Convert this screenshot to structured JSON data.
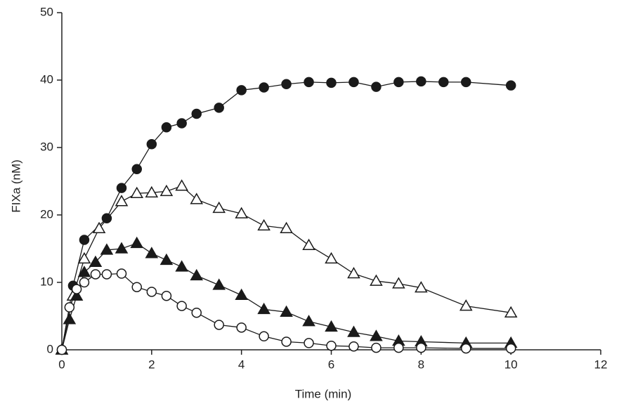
{
  "chart_data": {
    "type": "scatter",
    "x_label": "Time (min)",
    "y_label": "FIXa (nM)",
    "xlim": [
      0,
      12
    ],
    "xticks": [
      0,
      2,
      4,
      6,
      8,
      10,
      12
    ],
    "ylim": [
      0,
      50
    ],
    "yticks": [
      0,
      10,
      20,
      30,
      40,
      50
    ],
    "connect": true,
    "series": [
      {
        "marker": "circle",
        "filled": true,
        "color": "#1a1a1a",
        "x": [
          0,
          0.25,
          0.5,
          1,
          1.33,
          1.67,
          2,
          2.33,
          2.67,
          3,
          3.5,
          4,
          4.5,
          5,
          5.5,
          6,
          6.5,
          7,
          7.5,
          8,
          8.5,
          9,
          10
        ],
        "values": [
          0,
          9.5,
          16.3,
          19.5,
          24,
          26.8,
          30.5,
          33,
          33.6,
          35,
          35.9,
          38.5,
          38.9,
          39.4,
          39.7,
          39.6,
          39.7,
          39,
          39.7,
          39.8,
          39.7,
          39.7,
          39.2
        ]
      },
      {
        "marker": "triangle",
        "filled": false,
        "color": "#1a1a1a",
        "x": [
          0,
          0.25,
          0.5,
          0.83,
          1.33,
          1.67,
          2,
          2.33,
          2.67,
          3,
          3.5,
          4,
          4.5,
          5,
          5.5,
          6,
          6.5,
          7,
          7.5,
          8,
          9,
          10
        ],
        "values": [
          0,
          8,
          13.5,
          18,
          22,
          23.2,
          23.3,
          23.5,
          24.3,
          22.3,
          21,
          20.2,
          18.4,
          18,
          15.5,
          13.5,
          11.3,
          10.2,
          9.8,
          9.2,
          6.5,
          5.5
        ]
      },
      {
        "marker": "triangle",
        "filled": true,
        "color": "#1a1a1a",
        "x": [
          0,
          0.17,
          0.33,
          0.5,
          0.75,
          1,
          1.33,
          1.67,
          2,
          2.33,
          2.67,
          3,
          3.5,
          4,
          4.5,
          5,
          5.5,
          6,
          6.5,
          7,
          7.5,
          8,
          9,
          10
        ],
        "values": [
          0,
          4.5,
          8,
          11.5,
          13,
          14.8,
          15,
          15.8,
          14.3,
          13.3,
          12.3,
          11,
          9.6,
          8.1,
          6,
          5.6,
          4.2,
          3.4,
          2.6,
          2,
          1.3,
          1.2,
          1,
          1
        ]
      },
      {
        "marker": "circle",
        "filled": false,
        "color": "#1a1a1a",
        "x": [
          0,
          0.17,
          0.33,
          0.5,
          0.75,
          1,
          1.33,
          1.67,
          2,
          2.33,
          2.67,
          3,
          3.5,
          4,
          4.5,
          5,
          5.5,
          6,
          6.5,
          7,
          7.5,
          8,
          9,
          10
        ],
        "values": [
          0,
          6.3,
          9,
          10,
          11.2,
          11.2,
          11.3,
          9.3,
          8.6,
          8,
          6.5,
          5.5,
          3.7,
          3.3,
          2,
          1.2,
          1,
          0.6,
          0.5,
          0.3,
          0.3,
          0.3,
          0.2,
          0.2
        ]
      }
    ]
  }
}
